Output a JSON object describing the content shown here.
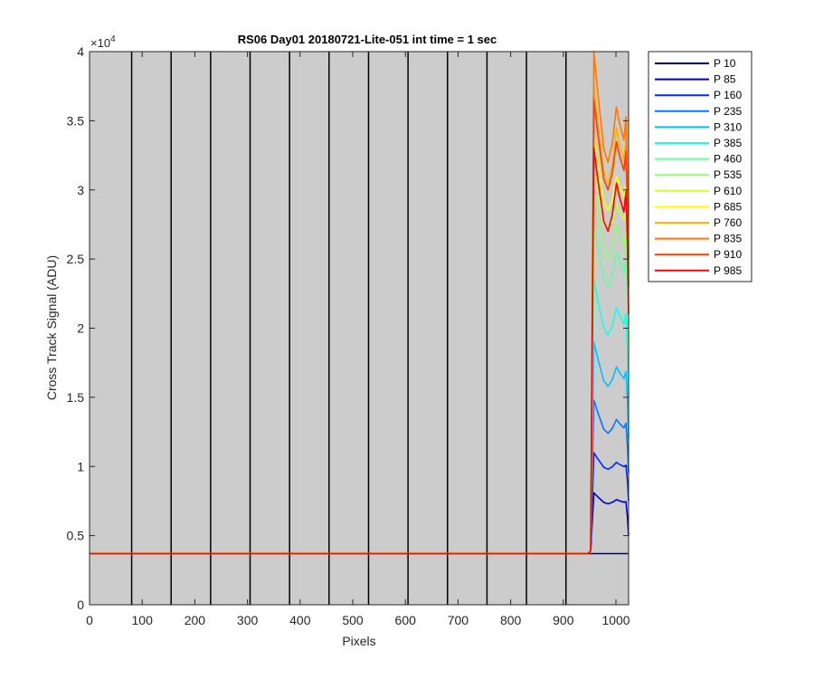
{
  "chart_data": {
    "type": "line",
    "title": "RS06 Day01 20180721-Lite-051 int time = 1 sec",
    "xlabel": "Pixels",
    "ylabel": "Cross Track Signal (ADU)",
    "y_exponent_label": "×10",
    "y_exponent_power": "4",
    "xlim": [
      0,
      1024
    ],
    "ylim": [
      0,
      40000
    ],
    "x_ticks": [
      0,
      100,
      200,
      300,
      400,
      500,
      600,
      700,
      800,
      900,
      1000
    ],
    "x_tick_labels": [
      "0",
      "100",
      "200",
      "300",
      "400",
      "500",
      "600",
      "700",
      "800",
      "900",
      "1000"
    ],
    "y_ticks": [
      0,
      5000,
      10000,
      15000,
      20000,
      25000,
      30000,
      35000,
      40000
    ],
    "y_tick_labels": [
      "0",
      "0.5",
      "1",
      "1.5",
      "2",
      "2.5",
      "3",
      "3.5",
      "4"
    ],
    "plot_background": "#cccccc",
    "vertical_lines_x": [
      80,
      155,
      230,
      305,
      380,
      455,
      530,
      605,
      680,
      755,
      830,
      905
    ],
    "vertical_line_color": "#000000",
    "legend_position": "outside-right",
    "baseline_value": 3700,
    "signal_start_x": 955,
    "signal_end_x": 1024,
    "series": [
      {
        "name": "P 10",
        "color": "#00008f",
        "peak": 3700,
        "mid_dip": 3700,
        "right_bump": 3700,
        "end_value": 3700
      },
      {
        "name": "P 85",
        "color": "#0000c8",
        "peak": 8100,
        "mid_dip": 7300,
        "right_bump": 7600,
        "end_value": 5000
      },
      {
        "name": "P 160",
        "color": "#0028ff",
        "peak": 11000,
        "mid_dip": 9800,
        "right_bump": 10300,
        "end_value": 7500
      },
      {
        "name": "P 235",
        "color": "#0078ff",
        "peak": 14800,
        "mid_dip": 12400,
        "right_bump": 13400,
        "end_value": 9500
      },
      {
        "name": "P 310",
        "color": "#00c0ff",
        "peak": 19000,
        "mid_dip": 15800,
        "right_bump": 17200,
        "end_value": 12000
      },
      {
        "name": "P 385",
        "color": "#18ffe8",
        "peak": 23500,
        "mid_dip": 19500,
        "right_bump": 21500,
        "end_value": 15000
      },
      {
        "name": "P 460",
        "color": "#60ffa0",
        "peak": 27500,
        "mid_dip": 23000,
        "right_bump": 25500,
        "end_value": 18000
      },
      {
        "name": "P 535",
        "color": "#90ff70",
        "peak": 30000,
        "mid_dip": 25000,
        "right_bump": 27500,
        "end_value": 19000
      },
      {
        "name": "P 610",
        "color": "#c8ff38",
        "peak": 31500,
        "mid_dip": 27000,
        "right_bump": 29000,
        "end_value": 20500
      },
      {
        "name": "P 685",
        "color": "#ffff00",
        "peak": 34000,
        "mid_dip": 28500,
        "right_bump": 31000,
        "end_value": 22000
      },
      {
        "name": "P 760",
        "color": "#ffb400",
        "peak": 37500,
        "mid_dip": 30500,
        "right_bump": 34500,
        "end_value": 24000
      },
      {
        "name": "P 835",
        "color": "#ff7800",
        "peak": 40000,
        "mid_dip": 32000,
        "right_bump": 36000,
        "end_value": 25000
      },
      {
        "name": "P 910",
        "color": "#ff3c00",
        "peak": 36500,
        "mid_dip": 30000,
        "right_bump": 33500,
        "end_value": 23000
      },
      {
        "name": "P 985",
        "color": "#ff0000",
        "peak": 33000,
        "mid_dip": 27000,
        "right_bump": 30500,
        "end_value": 21000
      }
    ]
  }
}
